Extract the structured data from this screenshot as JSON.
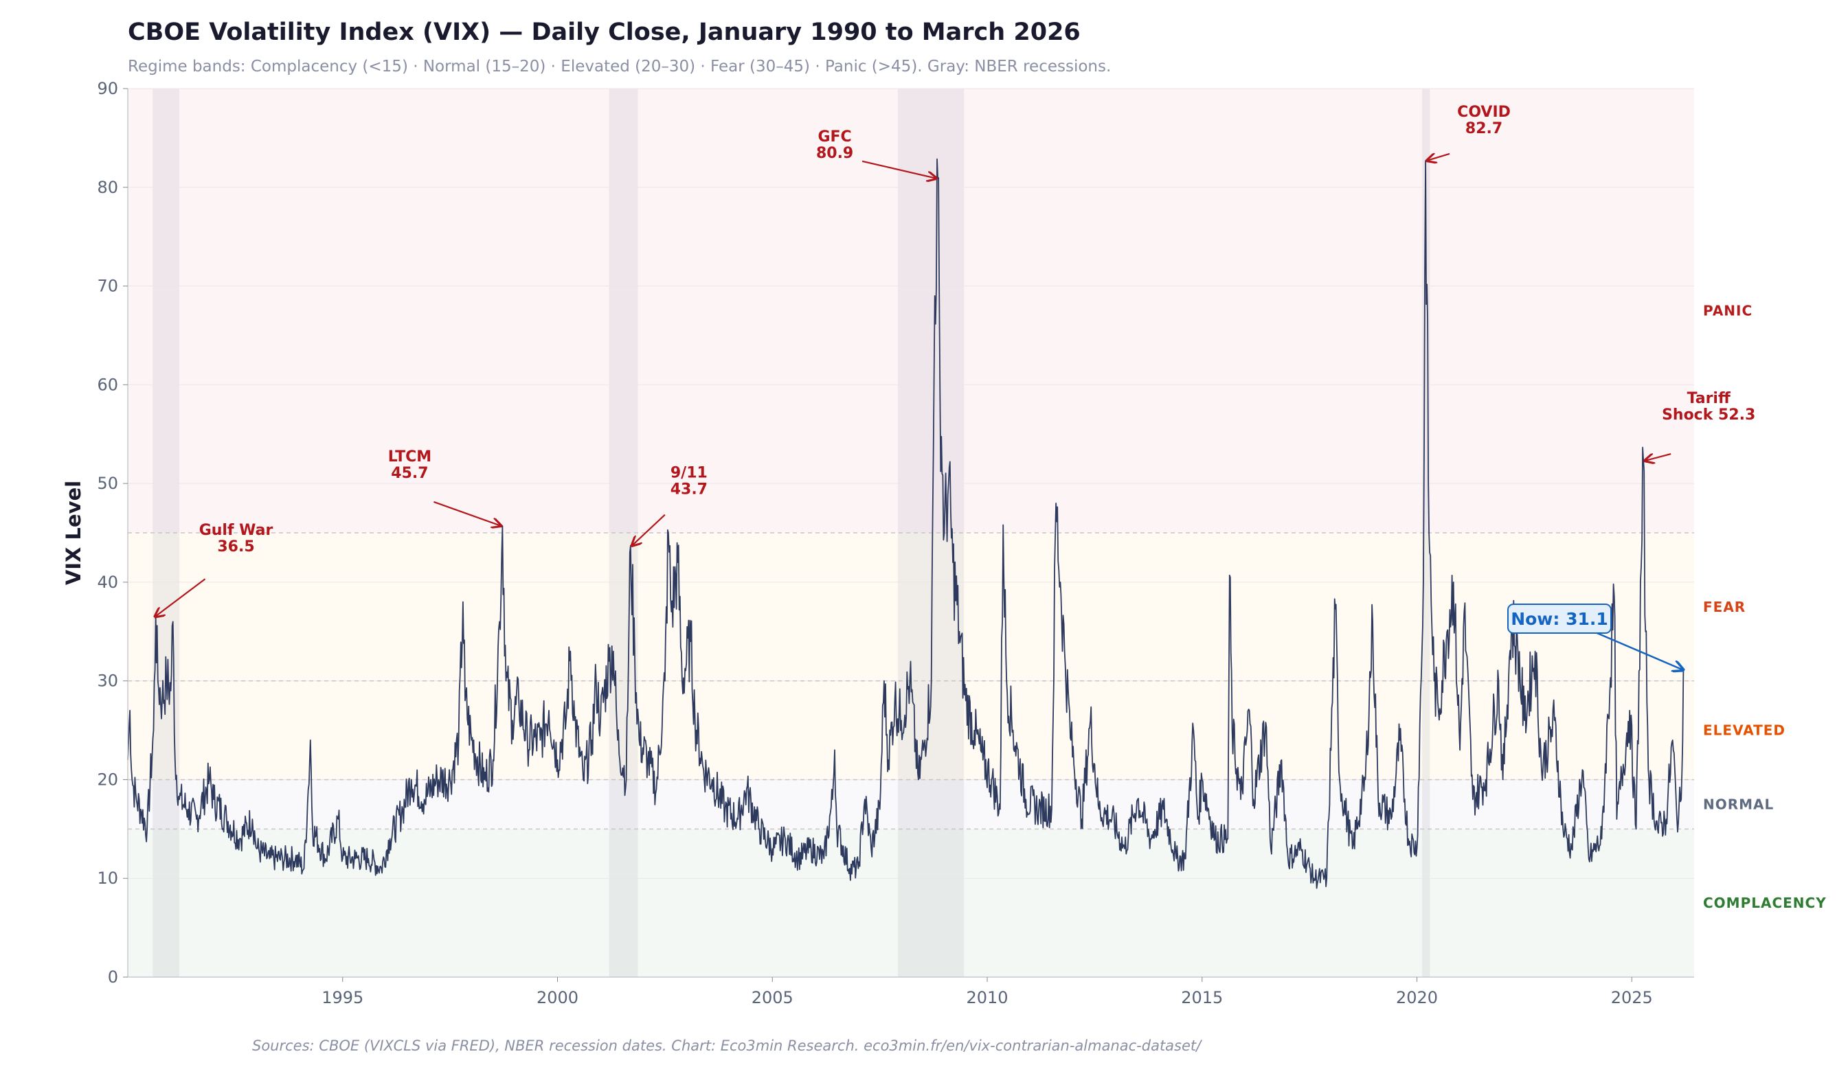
{
  "chart_data": {
    "type": "line",
    "title": "CBOE Volatility Index (VIX) — Daily Close, January 1990 to March 2026",
    "subtitle": "Regime bands: Complacency (<15) · Normal (15–20) · Elevated (20–30) · Fear (30–45) · Panic (>45). Gray: NBER recessions.",
    "ylabel": "VIX Level",
    "xlabel": "",
    "footer": "Sources: CBOE (VIXCLS via FRED), NBER recession dates. Chart: Eco3min Research.  eco3min.fr/en/vix-contrarian-almanac-dataset/",
    "xlim": [
      1990.0,
      2026.45
    ],
    "ylim": [
      0,
      90
    ],
    "xticks": [
      1995,
      2000,
      2005,
      2010,
      2015,
      2020,
      2025
    ],
    "yticks": [
      0,
      10,
      20,
      30,
      40,
      50,
      60,
      70,
      80,
      90
    ],
    "grid": true,
    "line_color": "#2d3a5e",
    "regimes": [
      {
        "label": "COMPLACENCY",
        "from": 0,
        "to": 15,
        "fill": "#f4f8f5",
        "text_color": "#2e7d32"
      },
      {
        "label": "NORMAL",
        "from": 15,
        "to": 20,
        "fill": "#f9f9fb",
        "text_color": "#5f6b80"
      },
      {
        "label": "ELEVATED",
        "from": 20,
        "to": 30,
        "fill": "#fffbf3",
        "text_color": "#e65100"
      },
      {
        "label": "FEAR",
        "from": 30,
        "to": 45,
        "fill": "#fffbf3",
        "text_color": "#d84315"
      },
      {
        "label": "PANIC",
        "from": 45,
        "to": 90,
        "fill": "#fdf4f6",
        "text_color": "#b71c1c"
      }
    ],
    "thresholds": [
      15,
      20,
      30,
      45
    ],
    "recessions": [
      [
        1990.58,
        1991.2
      ],
      [
        2001.2,
        2001.87
      ],
      [
        2007.92,
        2009.46
      ],
      [
        2020.12,
        2020.3
      ]
    ],
    "annotations": [
      {
        "lines": [
          "Gulf War",
          "36.5"
        ],
        "x": 1990.6,
        "y": 36.5
      },
      {
        "lines": [
          "LTCM",
          "45.7"
        ],
        "x": 1998.72,
        "y": 45.7
      },
      {
        "lines": [
          "9/11",
          "43.7"
        ],
        "x": 2001.7,
        "y": 43.7
      },
      {
        "lines": [
          "GFC",
          "80.9"
        ],
        "x": 2008.85,
        "y": 80.9
      },
      {
        "lines": [
          "COVID",
          "82.7"
        ],
        "x": 2020.2,
        "y": 82.7
      },
      {
        "lines": [
          "Tariff",
          "Shock 52.3"
        ],
        "x": 2025.27,
        "y": 52.3
      }
    ],
    "current": {
      "label": "Now: 31.1",
      "x": 2026.2,
      "y": 31.1,
      "color": "#1565c0"
    },
    "series": [
      {
        "points": [
          [
            1990.0,
            22
          ],
          [
            1990.05,
            27
          ],
          [
            1990.1,
            20
          ],
          [
            1990.2,
            18
          ],
          [
            1990.3,
            17
          ],
          [
            1990.45,
            15
          ],
          [
            1990.6,
            25
          ],
          [
            1990.65,
            36.5
          ],
          [
            1990.7,
            30
          ],
          [
            1990.8,
            28
          ],
          [
            1990.9,
            30
          ],
          [
            1991.0,
            29
          ],
          [
            1991.05,
            36
          ],
          [
            1991.1,
            22
          ],
          [
            1991.2,
            18
          ],
          [
            1991.4,
            17
          ],
          [
            1991.6,
            16
          ],
          [
            1991.9,
            20
          ],
          [
            1992.0,
            18
          ],
          [
            1992.3,
            16
          ],
          [
            1992.6,
            14
          ],
          [
            1992.9,
            16
          ],
          [
            1993.0,
            13
          ],
          [
            1993.3,
            12
          ],
          [
            1993.6,
            12
          ],
          [
            1993.9,
            12
          ],
          [
            1994.1,
            11
          ],
          [
            1994.2,
            19
          ],
          [
            1994.25,
            24
          ],
          [
            1994.3,
            15
          ],
          [
            1994.6,
            12
          ],
          [
            1994.9,
            16
          ],
          [
            1995.0,
            12
          ],
          [
            1995.3,
            12
          ],
          [
            1995.6,
            12
          ],
          [
            1995.9,
            11
          ],
          [
            1996.1,
            14
          ],
          [
            1996.4,
            17
          ],
          [
            1996.6,
            20
          ],
          [
            1996.9,
            18
          ],
          [
            1997.2,
            20
          ],
          [
            1997.5,
            20
          ],
          [
            1997.7,
            24
          ],
          [
            1997.8,
            38
          ],
          [
            1997.85,
            28
          ],
          [
            1998.0,
            24
          ],
          [
            1998.3,
            20
          ],
          [
            1998.5,
            22
          ],
          [
            1998.65,
            36
          ],
          [
            1998.72,
            45.7
          ],
          [
            1998.8,
            30
          ],
          [
            1998.95,
            26
          ],
          [
            1999.1,
            28
          ],
          [
            1999.3,
            24
          ],
          [
            1999.6,
            24
          ],
          [
            1999.8,
            27
          ],
          [
            2000.0,
            22
          ],
          [
            2000.2,
            26
          ],
          [
            2000.3,
            33
          ],
          [
            2000.4,
            26
          ],
          [
            2000.6,
            20
          ],
          [
            2000.8,
            24
          ],
          [
            2000.9,
            30
          ],
          [
            2001.0,
            26
          ],
          [
            2001.2,
            32
          ],
          [
            2001.3,
            33
          ],
          [
            2001.4,
            24
          ],
          [
            2001.6,
            20
          ],
          [
            2001.7,
            43.7
          ],
          [
            2001.8,
            32
          ],
          [
            2001.9,
            24
          ],
          [
            2002.1,
            22
          ],
          [
            2002.3,
            19
          ],
          [
            2002.5,
            30
          ],
          [
            2002.58,
            45
          ],
          [
            2002.65,
            37
          ],
          [
            2002.8,
            42
          ],
          [
            2002.9,
            30
          ],
          [
            2003.1,
            34
          ],
          [
            2003.2,
            26
          ],
          [
            2003.4,
            21
          ],
          [
            2003.6,
            20
          ],
          [
            2003.9,
            17
          ],
          [
            2004.2,
            16
          ],
          [
            2004.4,
            19
          ],
          [
            2004.7,
            15
          ],
          [
            2005.0,
            13
          ],
          [
            2005.3,
            14
          ],
          [
            2005.6,
            12
          ],
          [
            2005.9,
            13
          ],
          [
            2006.2,
            12
          ],
          [
            2006.4,
            18
          ],
          [
            2006.45,
            23
          ],
          [
            2006.5,
            15
          ],
          [
            2006.8,
            11
          ],
          [
            2007.0,
            11
          ],
          [
            2007.15,
            18
          ],
          [
            2007.3,
            13
          ],
          [
            2007.5,
            17
          ],
          [
            2007.6,
            30
          ],
          [
            2007.7,
            22
          ],
          [
            2007.85,
            28
          ],
          [
            2008.0,
            26
          ],
          [
            2008.2,
            30
          ],
          [
            2008.4,
            20
          ],
          [
            2008.55,
            24
          ],
          [
            2008.7,
            30
          ],
          [
            2008.78,
            69
          ],
          [
            2008.85,
            80.9
          ],
          [
            2008.9,
            60
          ],
          [
            2009.0,
            45
          ],
          [
            2009.1,
            50
          ],
          [
            2009.2,
            42
          ],
          [
            2009.35,
            35
          ],
          [
            2009.5,
            28
          ],
          [
            2009.7,
            25
          ],
          [
            2009.9,
            22
          ],
          [
            2010.1,
            20
          ],
          [
            2010.3,
            17
          ],
          [
            2010.37,
            45.8
          ],
          [
            2010.45,
            30
          ],
          [
            2010.6,
            25
          ],
          [
            2010.9,
            18
          ],
          [
            2011.2,
            17
          ],
          [
            2011.5,
            17
          ],
          [
            2011.6,
            48
          ],
          [
            2011.7,
            40
          ],
          [
            2011.8,
            33
          ],
          [
            2011.95,
            24
          ],
          [
            2012.2,
            16
          ],
          [
            2012.4,
            26
          ],
          [
            2012.6,
            17
          ],
          [
            2012.9,
            16
          ],
          [
            2013.2,
            13
          ],
          [
            2013.5,
            18
          ],
          [
            2013.8,
            14
          ],
          [
            2014.1,
            17
          ],
          [
            2014.4,
            12
          ],
          [
            2014.6,
            12
          ],
          [
            2014.8,
            25
          ],
          [
            2014.9,
            16
          ],
          [
            2015.0,
            20
          ],
          [
            2015.3,
            14
          ],
          [
            2015.6,
            14
          ],
          [
            2015.64,
            40.7
          ],
          [
            2015.7,
            25
          ],
          [
            2015.9,
            18
          ],
          [
            2016.1,
            27
          ],
          [
            2016.2,
            18
          ],
          [
            2016.48,
            25.8
          ],
          [
            2016.6,
            13
          ],
          [
            2016.85,
            22
          ],
          [
            2017.0,
            12
          ],
          [
            2017.3,
            13
          ],
          [
            2017.6,
            10
          ],
          [
            2017.9,
            10
          ],
          [
            2018.1,
            37.3
          ],
          [
            2018.2,
            20
          ],
          [
            2018.5,
            13
          ],
          [
            2018.8,
            20
          ],
          [
            2018.97,
            36
          ],
          [
            2019.1,
            18
          ],
          [
            2019.4,
            16
          ],
          [
            2019.6,
            24
          ],
          [
            2019.8,
            14
          ],
          [
            2020.0,
            13
          ],
          [
            2020.15,
            40
          ],
          [
            2020.2,
            82.7
          ],
          [
            2020.28,
            45
          ],
          [
            2020.4,
            30
          ],
          [
            2020.5,
            27
          ],
          [
            2020.7,
            35
          ],
          [
            2020.85,
            40
          ],
          [
            2021.0,
            23
          ],
          [
            2021.1,
            37
          ],
          [
            2021.3,
            18
          ],
          [
            2021.6,
            20
          ],
          [
            2021.9,
            30
          ],
          [
            2022.0,
            20
          ],
          [
            2022.2,
            36
          ],
          [
            2022.35,
            33
          ],
          [
            2022.5,
            26
          ],
          [
            2022.75,
            33
          ],
          [
            2022.9,
            21
          ],
          [
            2023.2,
            26
          ],
          [
            2023.4,
            15
          ],
          [
            2023.6,
            13
          ],
          [
            2023.85,
            21
          ],
          [
            2024.0,
            12
          ],
          [
            2024.3,
            14
          ],
          [
            2024.59,
            38.6
          ],
          [
            2024.65,
            16
          ],
          [
            2024.95,
            27
          ],
          [
            2025.1,
            15
          ],
          [
            2025.27,
            52.3
          ],
          [
            2025.32,
            35
          ],
          [
            2025.4,
            20
          ],
          [
            2025.6,
            15
          ],
          [
            2025.8,
            16
          ],
          [
            2025.95,
            24
          ],
          [
            2026.05,
            16
          ],
          [
            2026.15,
            18
          ],
          [
            2026.2,
            31.1
          ]
        ]
      }
    ]
  }
}
